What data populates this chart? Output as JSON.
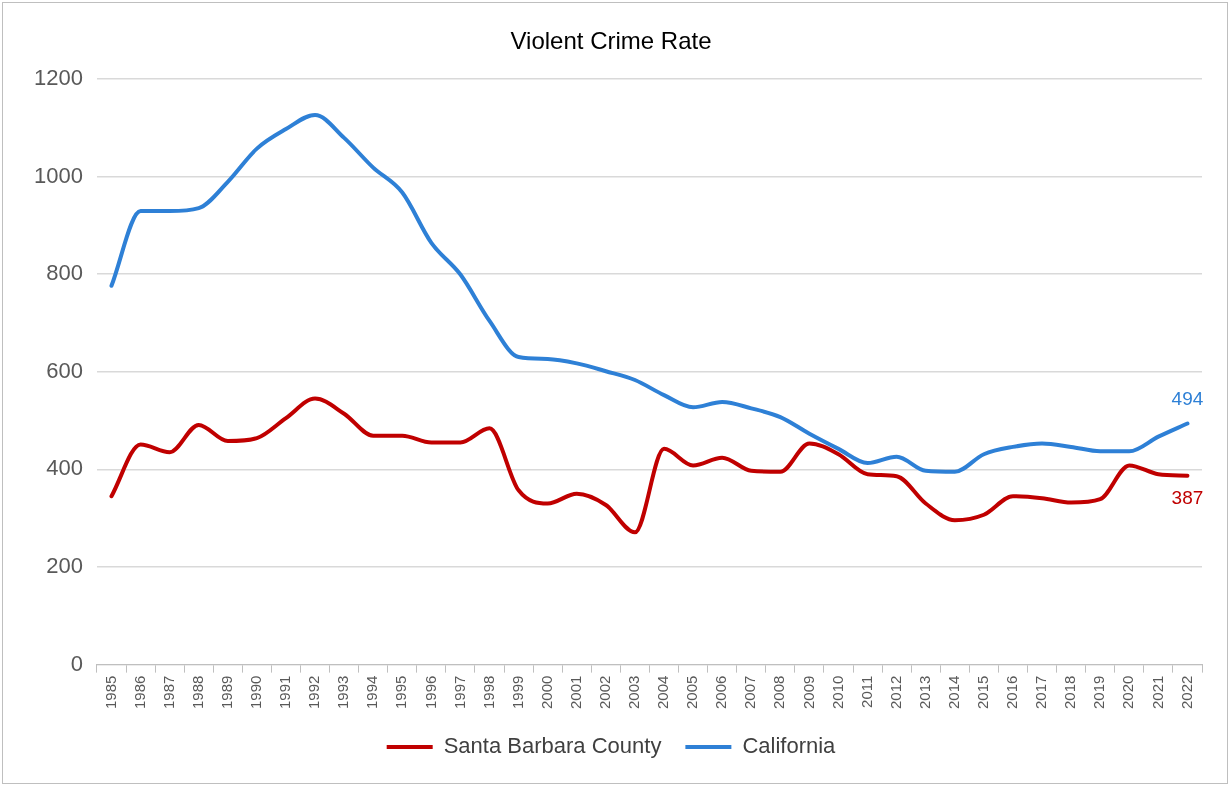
{
  "chart_data": {
    "type": "line",
    "title": "Violent Crime Rate",
    "categories": [
      "1985",
      "1986",
      "1987",
      "1988",
      "1989",
      "1990",
      "1991",
      "1992",
      "1993",
      "1994",
      "1995",
      "1996",
      "1997",
      "1998",
      "1999",
      "2000",
      "2001",
      "2002",
      "2003",
      "2004",
      "2005",
      "2006",
      "2007",
      "2008",
      "2009",
      "2010",
      "2011",
      "2012",
      "2013",
      "2014",
      "2015",
      "2016",
      "2017",
      "2018",
      "2019",
      "2020",
      "2021",
      "2022"
    ],
    "series": [
      {
        "name": "Santa Barbara County",
        "color": "#c00000",
        "values": [
          345,
          451,
          435,
          491,
          458,
          464,
          505,
          545,
          514,
          469,
          469,
          455,
          455,
          484,
          357,
          330,
          350,
          327,
          271,
          442,
          408,
          424,
          397,
          395,
          453,
          431,
          390,
          386,
          330,
          296,
          307,
          345,
          341,
          332,
          339,
          408,
          390,
          387
        ],
        "value_labels": [
          null,
          null,
          null,
          null,
          null,
          null,
          null,
          null,
          null,
          null,
          null,
          null,
          null,
          null,
          null,
          null,
          null,
          null,
          null,
          null,
          null,
          null,
          null,
          null,
          null,
          null,
          null,
          null,
          null,
          null,
          null,
          null,
          null,
          null,
          null,
          null,
          null,
          "387"
        ]
      },
      {
        "name": "California",
        "color": "#2e80d6",
        "values": [
          776,
          929,
          929,
          935,
          989,
          1057,
          1097,
          1126,
          1079,
          1018,
          967,
          864,
          799,
          704,
          630,
          626,
          617,
          601,
          583,
          552,
          527,
          538,
          525,
          507,
          473,
          442,
          413,
          426,
          397,
          395,
          431,
          446,
          453,
          446,
          437,
          437,
          467,
          494
        ],
        "value_labels": [
          null,
          null,
          null,
          null,
          null,
          null,
          null,
          null,
          null,
          null,
          null,
          null,
          null,
          null,
          null,
          null,
          null,
          null,
          null,
          null,
          null,
          null,
          null,
          null,
          null,
          null,
          null,
          null,
          null,
          null,
          null,
          null,
          null,
          null,
          null,
          null,
          null,
          "494"
        ]
      }
    ],
    "ylim": [
      0,
      1200
    ],
    "yticks": [
      0,
      200,
      400,
      600,
      800,
      1000,
      1200
    ],
    "grid": "y",
    "legend": "bottom",
    "marker": "none",
    "line_style": "solid"
  }
}
